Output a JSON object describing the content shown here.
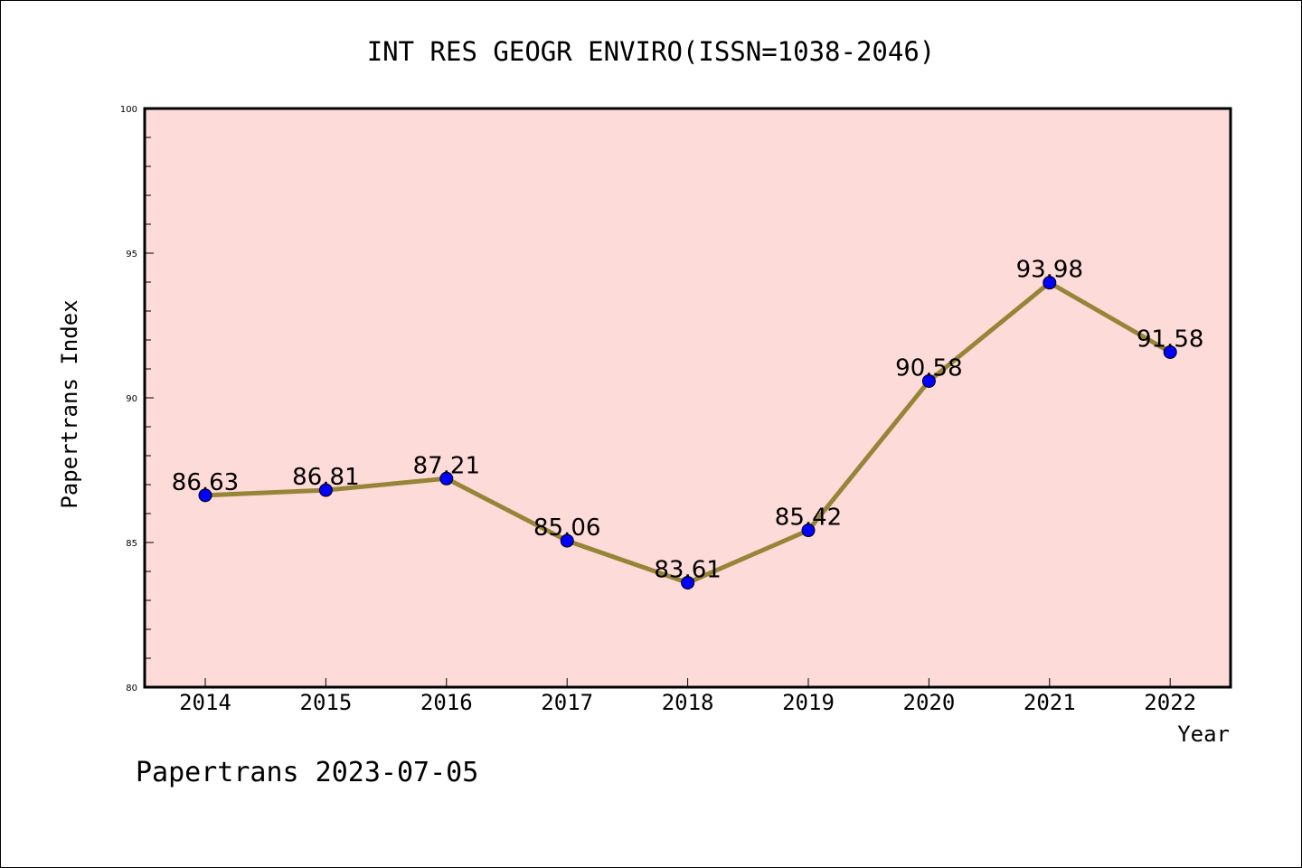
{
  "chart_data": {
    "type": "line",
    "title": "INT RES GEOGR ENVIRO(ISSN=1038-2046)",
    "xlabel": "Year",
    "ylabel": "Papertrans Index",
    "footer": "Papertrans 2023-07-05",
    "x": [
      "2014",
      "2015",
      "2016",
      "2017",
      "2018",
      "2019",
      "2020",
      "2021",
      "2022"
    ],
    "series": [
      {
        "values": [
          86.63,
          86.81,
          87.21,
          85.06,
          83.61,
          85.42,
          90.58,
          93.98,
          91.58
        ],
        "labels": [
          "86.63",
          "86.81",
          "87.21",
          "85.06",
          "83.61",
          "85.42",
          "90.58",
          "93.98",
          "91.58"
        ]
      }
    ],
    "ylim": [
      80,
      100
    ],
    "yticks": [
      "80",
      "85",
      "90",
      "95",
      "100"
    ],
    "grid": false,
    "colors": {
      "plot_background": "#fddbd8",
      "line": "#968538",
      "marker": "#0000ff"
    }
  }
}
